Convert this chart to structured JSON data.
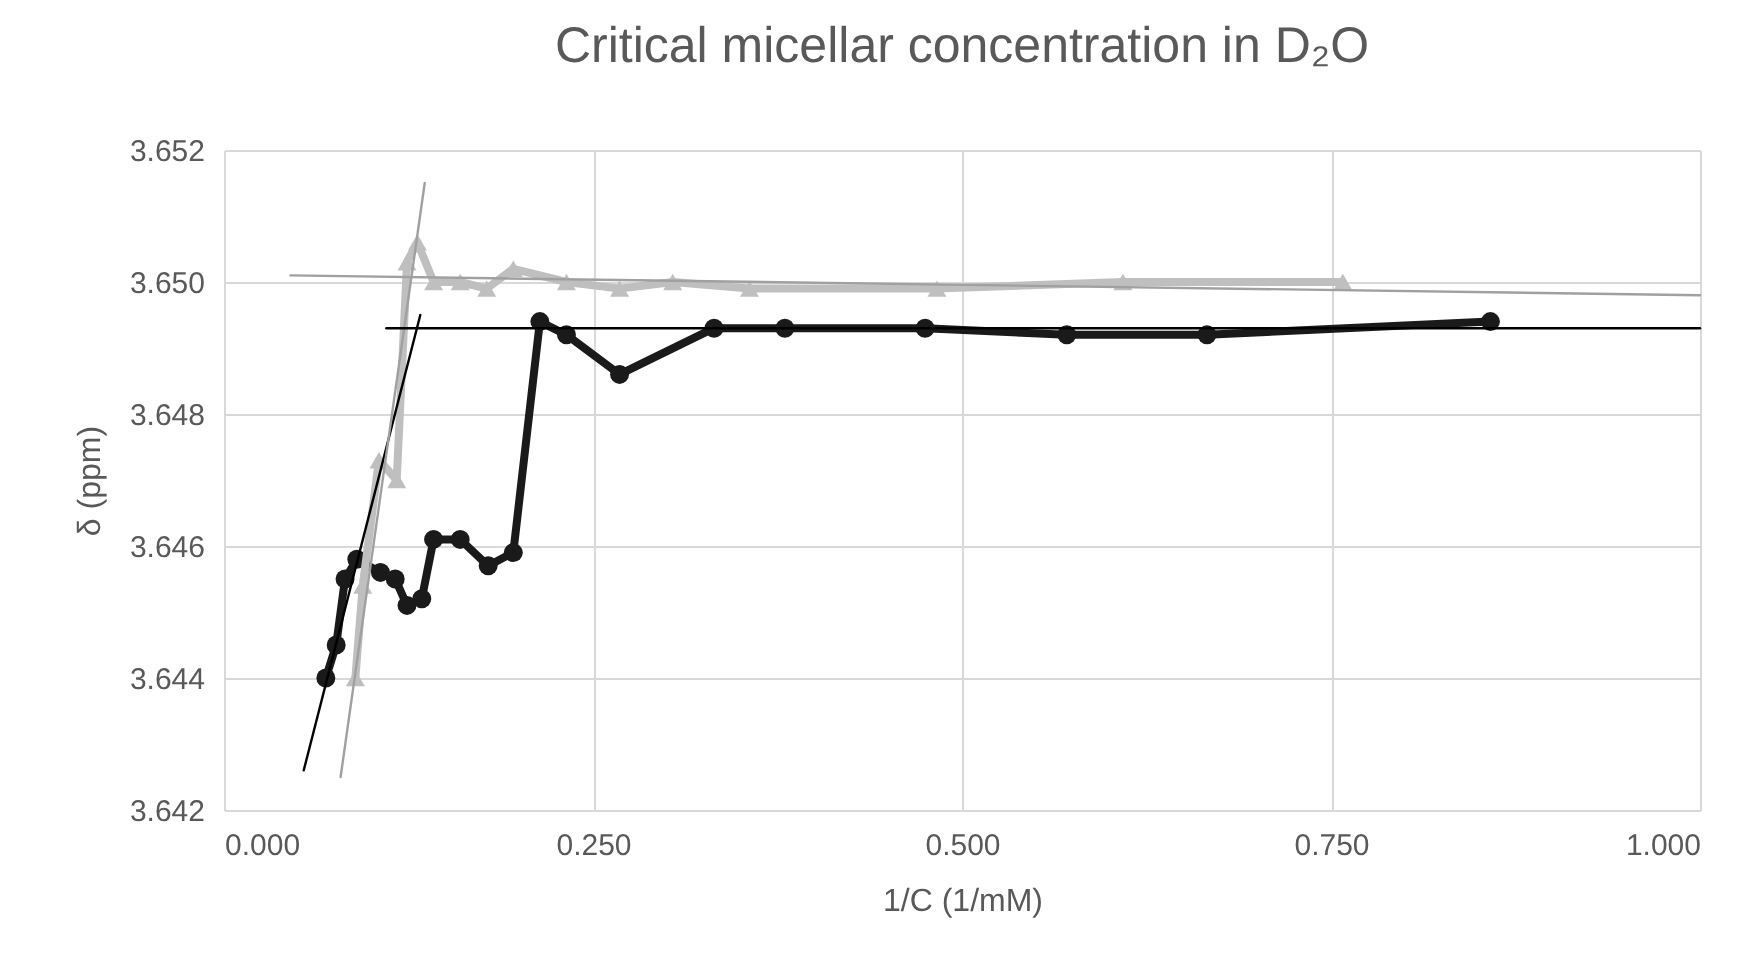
{
  "chart_data": {
    "type": "line",
    "title": "Critical micellar concentration in D₂O",
    "xlabel": "1/C (1/mM)",
    "ylabel": "δ (ppm)",
    "xlim": [
      0,
      1
    ],
    "xticks": [
      {
        "value": 0,
        "label": "0.000"
      },
      {
        "value": 0.25,
        "label": "0.250"
      },
      {
        "value": 0.5,
        "label": "0.500"
      },
      {
        "value": 0.75,
        "label": "0.750"
      },
      {
        "value": 1,
        "label": "1.000"
      }
    ],
    "ylim": [
      3.642,
      3.652
    ],
    "yticks": [
      {
        "value": 3.642,
        "label": "3.642"
      },
      {
        "value": 3.644,
        "label": "3.644"
      },
      {
        "value": 3.646,
        "label": "3.646"
      },
      {
        "value": 3.648,
        "label": "3.648"
      },
      {
        "value": 3.65,
        "label": "3.650"
      },
      {
        "value": 3.652,
        "label": "3.652"
      }
    ],
    "grid": true,
    "series": [
      {
        "marker": "circle",
        "color": "#1a1a1a",
        "x": [
          0.069,
          0.076,
          0.082,
          0.09,
          0.106,
          0.116,
          0.124,
          0.134,
          0.142,
          0.16,
          0.179,
          0.196,
          0.214,
          0.232,
          0.268,
          0.332,
          0.38,
          0.475,
          0.571,
          0.666,
          0.858
        ],
        "values": [
          3.644,
          3.6445,
          3.6455,
          3.6458,
          3.6456,
          3.6455,
          3.6451,
          3.6452,
          3.6461,
          3.6461,
          3.6457,
          3.6459,
          3.6494,
          3.6492,
          3.6486,
          3.6493,
          3.6493,
          3.6493,
          3.6492,
          3.6492,
          3.6494
        ]
      },
      {
        "marker": "triangle",
        "color": "#bfbfbf",
        "x": [
          0.089,
          0.094,
          0.105,
          0.117,
          0.124,
          0.131,
          0.142,
          0.16,
          0.178,
          0.196,
          0.232,
          0.268,
          0.304,
          0.356,
          0.483,
          0.609,
          0.758
        ],
        "values": [
          3.644,
          3.6454,
          3.6473,
          3.647,
          3.6503,
          3.6506,
          3.65,
          3.65,
          3.6499,
          3.6502,
          3.65,
          3.6499,
          3.65,
          3.6499,
          3.6499,
          3.65,
          3.65
        ]
      },
      {
        "marker": "none",
        "color": "#000000",
        "x": [
          0.054,
          0.133
        ],
        "values": [
          3.6426,
          3.6495
        ]
      },
      {
        "marker": "none",
        "color": "#a0a0a0",
        "x": [
          0.079,
          0.136
        ],
        "values": [
          3.6425,
          3.6515
        ]
      },
      {
        "marker": "none",
        "color": "#000000",
        "x": [
          0.11,
          1.0
        ],
        "values": [
          3.6493,
          3.6493
        ]
      },
      {
        "marker": "none",
        "color": "#a0a0a0",
        "x": [
          0.045,
          1.0
        ],
        "values": [
          3.6501,
          3.6498
        ]
      }
    ]
  }
}
